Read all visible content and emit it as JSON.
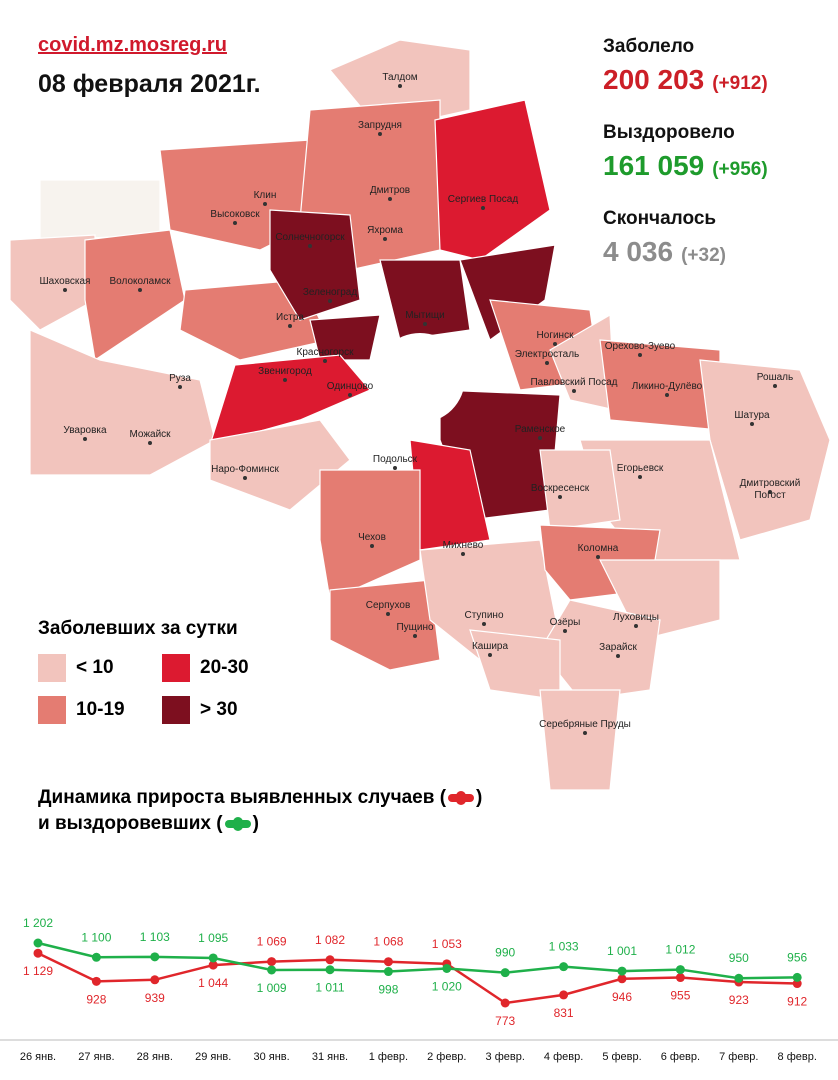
{
  "header": {
    "site": "covid.mz.mosreg.ru",
    "date": "08 февраля 2021г."
  },
  "stats": [
    {
      "label": "Заболело",
      "value": "200 203",
      "change": "(+912)",
      "color": "#cc1f27"
    },
    {
      "label": "Выздоровело",
      "value": "161 059",
      "change": "(+956)",
      "color": "#1e9b2c"
    },
    {
      "label": "Скончалось",
      "value": "4 036",
      "change": "(+32)",
      "color": "#8c8c8c"
    }
  ],
  "legend": {
    "title": "Заболевших за сутки",
    "items": [
      {
        "label": "< 10",
        "color": "#f2c4bd"
      },
      {
        "label": "10-19",
        "color": "#e47c72"
      },
      {
        "label": "20-30",
        "color": "#dc1a30"
      },
      {
        "label": "> 30",
        "color": "#7d0f1f"
      }
    ]
  },
  "map": {
    "towns": [
      "Талдом",
      "Запрудня",
      "Клин",
      "Дмитров",
      "Высоковск",
      "Сергиев Посад",
      "Яхрома",
      "Солнечногорск",
      "Шаховская",
      "Волоколамск",
      "Зеленоград",
      "Истра",
      "Мытищи",
      "Ногинск",
      "Электросталь",
      "Орехово-Зуево",
      "Красногорск",
      "Звенигород",
      "Одинцово",
      "Руза",
      "Павловский Посад",
      "Ликино-Дулёво",
      "Уваровка",
      "Можайск",
      "Шатура",
      "Рошаль",
      "Раменское",
      "Наро-Фоминск",
      "Подольск",
      "Воскресенск",
      "Егорьевск",
      "Дмитровский Погост",
      "Чехов",
      "Михнево",
      "Коломна",
      "Серпухов",
      "Пущино",
      "Ступино",
      "Озёры",
      "Луховицы",
      "Кашира",
      "Зарайск",
      "Серебряные Пруды"
    ]
  },
  "chart_data": {
    "type": "line",
    "title_line1": "Динамика прироста выявленных случаев (",
    "title_line2": "и выздоровевших (",
    "title_close": ")",
    "categories": [
      "26 янв.",
      "27 янв.",
      "28 янв.",
      "29 янв.",
      "30 янв.",
      "31 янв.",
      "1 февр.",
      "2 февр.",
      "3 февр.",
      "4 февр.",
      "5 февр.",
      "6 февр.",
      "7 февр.",
      "8 февр."
    ],
    "series": [
      {
        "color": "#e0262b",
        "values": [
          1129,
          928,
          939,
          1044,
          1069,
          1082,
          1068,
          1053,
          773,
          831,
          946,
          955,
          923,
          912
        ],
        "value_labels": [
          "1 129",
          "928",
          "939",
          "1 044",
          "1 069",
          "1 082",
          "1 068",
          "1 053",
          "773",
          "831",
          "946",
          "955",
          "923",
          "912"
        ]
      },
      {
        "color": "#1fb04a",
        "values": [
          1202,
          1100,
          1103,
          1095,
          1009,
          1011,
          998,
          1020,
          990,
          1033,
          1001,
          1012,
          950,
          956
        ],
        "value_labels": [
          "1 202",
          "1 100",
          "1 103",
          "1 095",
          "1 009",
          "1 011",
          "998",
          "1 020",
          "990",
          "1 033",
          "1 001",
          "1 012",
          "950",
          "956"
        ]
      }
    ]
  }
}
